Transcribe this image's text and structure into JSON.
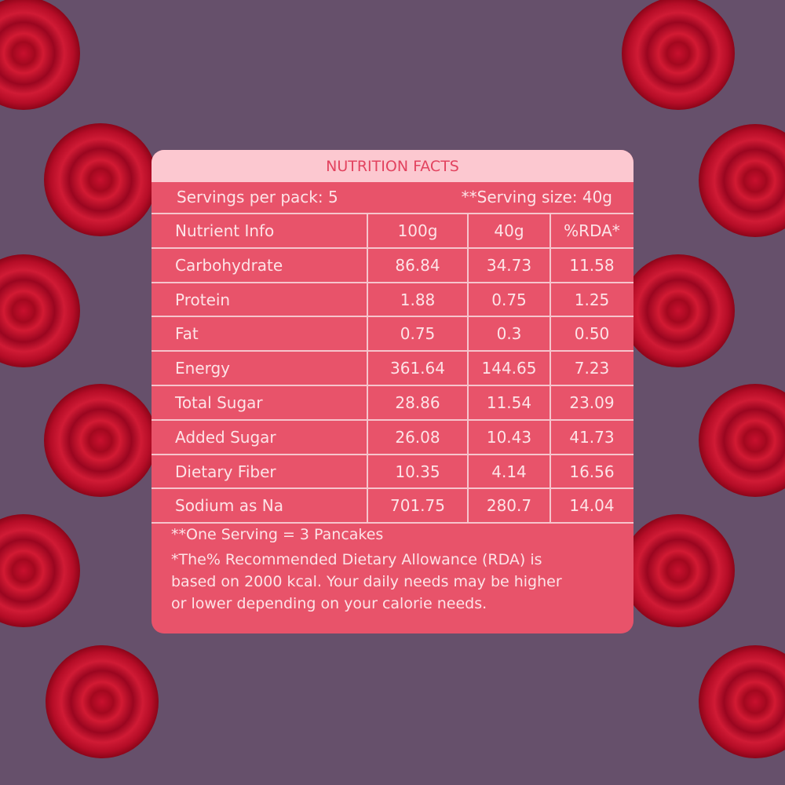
{
  "header": {
    "title": "NUTRITION FACTS"
  },
  "servings": {
    "per_pack": "Servings per pack: 5",
    "size": "**Serving size: 40g"
  },
  "table": {
    "columns": [
      "Nutrient Info",
      "100g",
      "40g",
      "%RDA*"
    ],
    "rows": [
      [
        "Carbohydrate",
        "86.84",
        "34.73",
        "11.58"
      ],
      [
        "Protein",
        "1.88",
        "0.75",
        "1.25"
      ],
      [
        "Fat",
        "0.75",
        "0.3",
        "0.50"
      ],
      [
        "Energy",
        "361.64",
        "144.65",
        "7.23"
      ],
      [
        "Total Sugar",
        "28.86",
        "11.54",
        "23.09"
      ],
      [
        "Added Sugar",
        "26.08",
        "10.43",
        "41.73"
      ],
      [
        "Dietary Fiber",
        "10.35",
        "4.14",
        "16.56"
      ],
      [
        "Sodium as Na",
        "701.75",
        "280.7",
        "14.04"
      ]
    ]
  },
  "notes": [
    "**One Serving =  3 Pancakes",
    "*The% Recommended Dietary Allowance (RDA) is",
    "based on 2000 kcal. Your daily needs may be higher",
    "or lower depending on your calorie needs."
  ]
}
